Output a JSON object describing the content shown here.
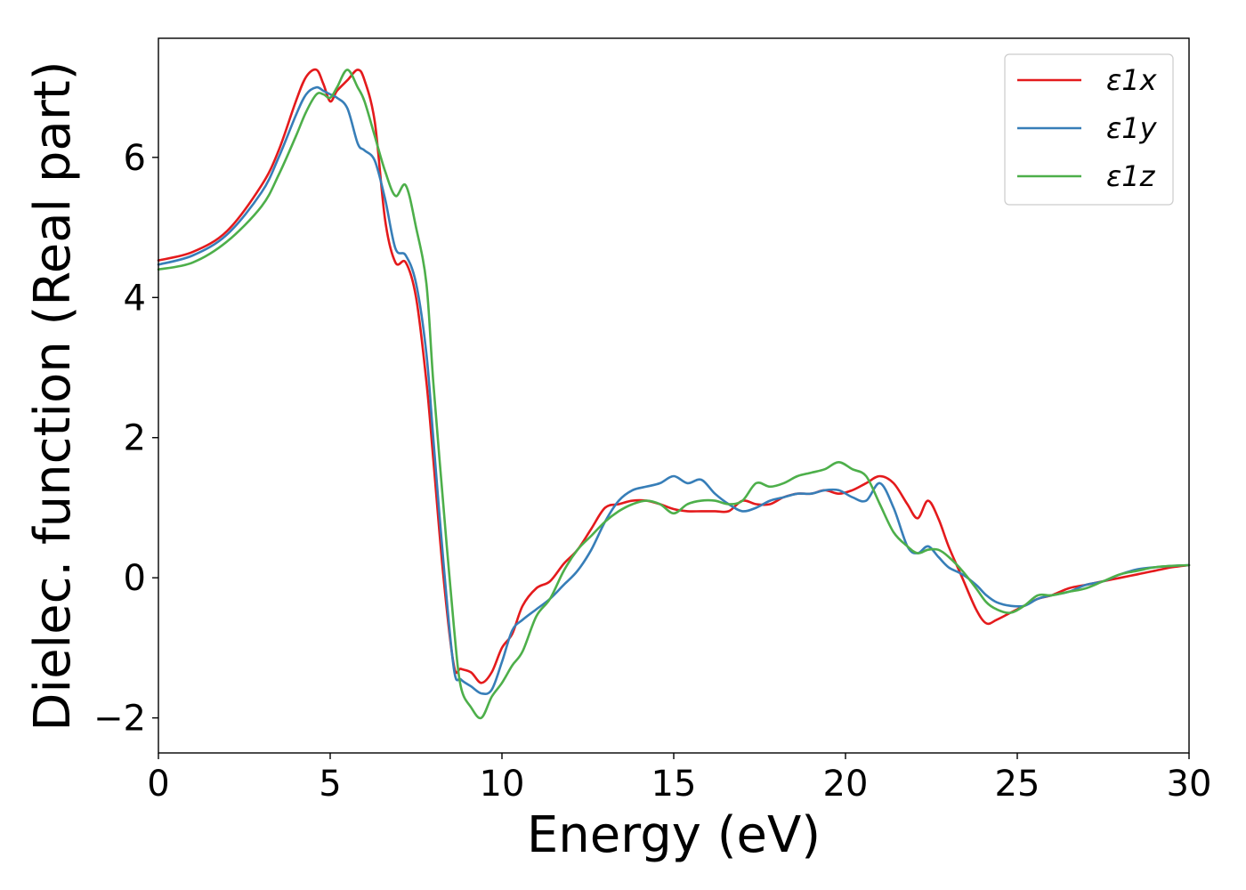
{
  "chart_data": {
    "type": "line",
    "title": "",
    "xlabel": "Energy (eV)",
    "ylabel": "Dielec. function (Real part)",
    "xlim": [
      0,
      30
    ],
    "ylim": [
      -2.5,
      7.7
    ],
    "x_ticks": [
      0,
      5,
      10,
      15,
      20,
      25,
      30
    ],
    "x_tick_labels": [
      "0",
      "5",
      "10",
      "15",
      "20",
      "25",
      "30"
    ],
    "y_ticks": [
      -2,
      0,
      2,
      4,
      6
    ],
    "y_tick_labels": [
      "−2",
      "0",
      "2",
      "4",
      "6"
    ],
    "grid": false,
    "legend_position": "top-right",
    "series": [
      {
        "name": "ε1x",
        "color": "#e41a1c",
        "x": [
          0,
          1,
          2,
          3,
          3.5,
          4,
          4.3,
          4.6,
          4.8,
          5.0,
          5.2,
          5.5,
          5.8,
          6.0,
          6.3,
          6.6,
          6.9,
          7.2,
          7.5,
          7.8,
          8.0,
          8.3,
          8.6,
          8.8,
          9.1,
          9.4,
          9.7,
          10.0,
          10.3,
          10.6,
          11.0,
          11.4,
          11.8,
          12.2,
          12.6,
          13.0,
          13.4,
          13.8,
          14.2,
          14.6,
          15.0,
          15.4,
          15.8,
          16.2,
          16.6,
          17.0,
          17.4,
          17.8,
          18.2,
          18.6,
          19.0,
          19.4,
          19.8,
          20.2,
          20.6,
          21.0,
          21.4,
          21.8,
          22.1,
          22.4,
          22.7,
          23.0,
          23.4,
          23.8,
          24.1,
          24.4,
          24.8,
          25.2,
          25.6,
          26.0,
          26.5,
          27.0,
          27.5,
          28.0,
          28.5,
          29.0,
          29.5,
          30.0
        ],
        "values": [
          4.53,
          4.65,
          4.95,
          5.6,
          6.1,
          6.8,
          7.15,
          7.25,
          7.05,
          6.8,
          6.95,
          7.1,
          7.25,
          7.1,
          6.5,
          5.1,
          4.5,
          4.5,
          4.0,
          2.8,
          1.7,
          0.0,
          -1.25,
          -1.3,
          -1.35,
          -1.5,
          -1.35,
          -1.0,
          -0.8,
          -0.4,
          -0.15,
          -0.05,
          0.2,
          0.4,
          0.7,
          1.0,
          1.05,
          1.1,
          1.1,
          1.05,
          0.98,
          0.95,
          0.95,
          0.95,
          0.95,
          1.1,
          1.05,
          1.05,
          1.15,
          1.2,
          1.2,
          1.25,
          1.2,
          1.25,
          1.35,
          1.45,
          1.35,
          1.05,
          0.85,
          1.1,
          0.85,
          0.45,
          0.0,
          -0.45,
          -0.65,
          -0.6,
          -0.5,
          -0.4,
          -0.3,
          -0.25,
          -0.15,
          -0.1,
          -0.05,
          0.0,
          0.05,
          0.1,
          0.15,
          0.18
        ]
      },
      {
        "name": "ε1y",
        "color": "#377eb8",
        "x": [
          0,
          1,
          2,
          3,
          3.5,
          4,
          4.3,
          4.6,
          4.8,
          5.0,
          5.2,
          5.5,
          5.8,
          6.0,
          6.3,
          6.6,
          6.9,
          7.2,
          7.5,
          7.8,
          8.0,
          8.3,
          8.6,
          8.8,
          9.1,
          9.4,
          9.7,
          10.0,
          10.3,
          10.6,
          11.0,
          11.4,
          11.8,
          12.2,
          12.6,
          13.0,
          13.4,
          13.8,
          14.2,
          14.6,
          15.0,
          15.4,
          15.8,
          16.2,
          16.6,
          17.0,
          17.4,
          17.8,
          18.2,
          18.6,
          19.0,
          19.4,
          19.8,
          20.2,
          20.6,
          21.0,
          21.4,
          21.8,
          22.1,
          22.4,
          22.7,
          23.0,
          23.4,
          23.8,
          24.1,
          24.4,
          24.8,
          25.2,
          25.6,
          26.0,
          26.5,
          27.0,
          27.5,
          28.0,
          28.5,
          29.0,
          29.5,
          30.0
        ],
        "values": [
          4.47,
          4.6,
          4.9,
          5.5,
          6.0,
          6.6,
          6.9,
          7.0,
          6.95,
          6.9,
          6.85,
          6.7,
          6.2,
          6.1,
          5.95,
          5.4,
          4.7,
          4.6,
          4.2,
          3.2,
          2.0,
          0.2,
          -1.3,
          -1.45,
          -1.55,
          -1.65,
          -1.6,
          -1.2,
          -0.75,
          -0.6,
          -0.45,
          -0.3,
          -0.1,
          0.1,
          0.4,
          0.8,
          1.1,
          1.25,
          1.3,
          1.35,
          1.45,
          1.35,
          1.4,
          1.2,
          1.05,
          0.95,
          1.0,
          1.1,
          1.15,
          1.2,
          1.2,
          1.25,
          1.25,
          1.15,
          1.1,
          1.35,
          1.0,
          0.45,
          0.35,
          0.45,
          0.3,
          0.15,
          0.05,
          -0.1,
          -0.25,
          -0.35,
          -0.4,
          -0.4,
          -0.3,
          -0.25,
          -0.2,
          -0.1,
          -0.05,
          0.05,
          0.12,
          0.15,
          0.17,
          0.18
        ]
      },
      {
        "name": "ε1z",
        "color": "#4daf4a",
        "x": [
          0,
          1,
          2,
          3,
          3.5,
          4,
          4.3,
          4.6,
          4.8,
          5.0,
          5.2,
          5.5,
          5.8,
          6.0,
          6.3,
          6.6,
          6.9,
          7.2,
          7.5,
          7.8,
          8.0,
          8.3,
          8.6,
          8.8,
          9.1,
          9.4,
          9.7,
          10.0,
          10.3,
          10.6,
          11.0,
          11.4,
          11.8,
          12.2,
          12.6,
          13.0,
          13.4,
          13.8,
          14.2,
          14.6,
          15.0,
          15.4,
          15.8,
          16.2,
          16.6,
          17.0,
          17.4,
          17.8,
          18.2,
          18.6,
          19.0,
          19.4,
          19.8,
          20.2,
          20.6,
          21.0,
          21.4,
          21.8,
          22.1,
          22.4,
          22.7,
          23.0,
          23.4,
          23.8,
          24.1,
          24.4,
          24.8,
          25.2,
          25.6,
          26.0,
          26.5,
          27.0,
          27.5,
          28.0,
          28.5,
          29.0,
          29.5,
          30.0
        ],
        "values": [
          4.4,
          4.5,
          4.8,
          5.3,
          5.75,
          6.3,
          6.65,
          6.9,
          6.9,
          6.85,
          7.0,
          7.25,
          7.0,
          6.8,
          6.3,
          5.8,
          5.45,
          5.6,
          5.0,
          4.2,
          2.8,
          1.0,
          -0.7,
          -1.55,
          -1.85,
          -2.0,
          -1.7,
          -1.5,
          -1.25,
          -1.05,
          -0.55,
          -0.3,
          0.1,
          0.4,
          0.6,
          0.8,
          0.95,
          1.05,
          1.1,
          1.05,
          0.92,
          1.05,
          1.1,
          1.1,
          1.05,
          1.1,
          1.35,
          1.3,
          1.35,
          1.45,
          1.5,
          1.55,
          1.65,
          1.55,
          1.45,
          1.05,
          0.65,
          0.45,
          0.35,
          0.4,
          0.4,
          0.3,
          0.1,
          -0.15,
          -0.35,
          -0.45,
          -0.5,
          -0.4,
          -0.25,
          -0.25,
          -0.2,
          -0.15,
          -0.05,
          0.05,
          0.1,
          0.15,
          0.17,
          0.18
        ]
      }
    ]
  }
}
